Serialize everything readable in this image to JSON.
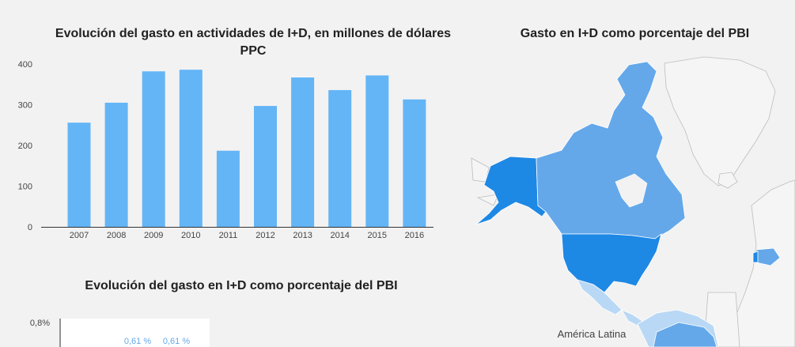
{
  "charts_meta": {
    "bar_title": "Evolución del gasto en actividades de I+D, en millones de dólares PPC",
    "map_title": "Gasto en I+D como porcentaje del PBI",
    "pct_title": "Evolución del gasto en I+D como porcentaje del PBI",
    "map_label": "América Latina",
    "pct_axis_top": "0,8%"
  },
  "colors": {
    "bar": "#64b5f6",
    "map_dark": "#1e88e5",
    "map_mid": "#64a8ea",
    "map_light": "#b9d8f5",
    "land": "#f5f5f5",
    "border": "#bdbdbd"
  },
  "chart_data": [
    {
      "type": "bar",
      "categories": [
        "2007",
        "2008",
        "2009",
        "2010",
        "2011",
        "2012",
        "2013",
        "2014",
        "2015",
        "2016"
      ],
      "values": [
        256,
        305,
        382,
        386,
        187,
        297,
        367,
        336,
        372,
        313
      ],
      "title": "Evolución del gasto en actividades de I+D, en millones de dólares PPC",
      "yticks": [
        0,
        100,
        200,
        300,
        400
      ],
      "ylim": [
        0,
        400
      ],
      "grid": false
    },
    {
      "type": "bar",
      "title": "Evolución del gasto en I+D como porcentaje del PBI",
      "ytick_top": "0,8%",
      "data_labels": [
        "0,61 %",
        "0,61 %"
      ],
      "values": [
        0.61,
        0.61
      ]
    }
  ]
}
